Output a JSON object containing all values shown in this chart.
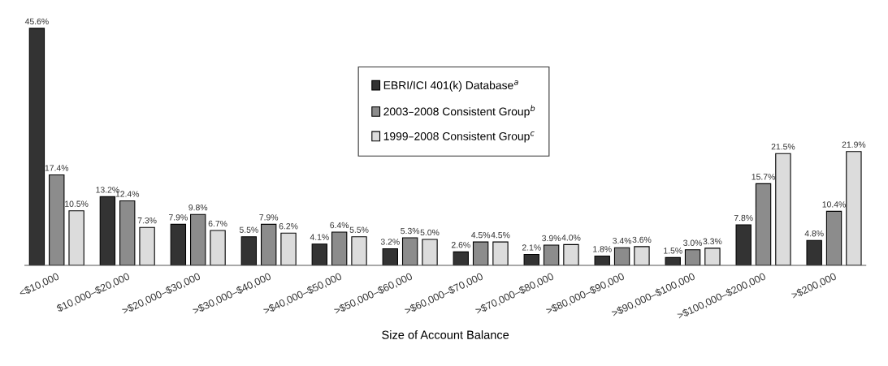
{
  "chart_data": {
    "type": "bar",
    "xlabel": "Size of Account Balance",
    "categories": [
      "<$10,000",
      "$10,000–$20,000",
      ">$20,000–$30,000",
      ">$30,000–$40,000",
      ">$40,000–$50,000",
      ">$50,000–$60,000",
      ">$60,000–$70,000",
      ">$70,000–$80,000",
      ">$80,000–$90,000",
      ">$90,000–$100,000",
      ">$100,000–$200,000",
      ">$200,000"
    ],
    "series": [
      {
        "name": "EBRI/ICI 401(k) Database$^{a}$",
        "color": "#333333",
        "values": [
          45.6,
          13.2,
          7.9,
          5.5,
          4.1,
          3.2,
          2.6,
          2.1,
          1.8,
          1.5,
          7.8,
          4.8
        ],
        "value_labels": [
          "45.6%",
          "13.2%",
          "7.9%",
          "5.5%",
          "4.1%",
          "3.2%",
          "2.6%",
          "2.1%",
          "1.8%",
          "1.5%",
          "7.8%",
          "4.8%"
        ]
      },
      {
        "name": "2003–2008 Consistent Group$^{b}$",
        "color": "#8c8c8c",
        "values": [
          17.4,
          12.4,
          9.8,
          7.9,
          6.4,
          5.3,
          4.5,
          3.9,
          3.4,
          3.0,
          15.7,
          10.4
        ],
        "value_labels": [
          "17.4%",
          "12.4%",
          "9.8%",
          "7.9%",
          "6.4%",
          "5.3%",
          "4.5%",
          "3.9%",
          "3.4%",
          "3.0%",
          "15.7%",
          "10.4%"
        ]
      },
      {
        "name": "1999–2008 Consistent Group$^{c}$",
        "color": "#dcdcdc",
        "values": [
          10.5,
          7.3,
          6.7,
          6.2,
          5.5,
          5.0,
          4.5,
          4.0,
          3.6,
          3.3,
          21.5,
          21.9
        ],
        "value_labels": [
          "10.5%",
          "7.3%",
          "6.7%",
          "6.2%",
          "5.5%",
          "5.0%",
          "4.5%",
          "4.0%",
          "3.6%",
          "3.3%",
          "21.5%",
          "21.9%"
        ]
      }
    ],
    "tick_labels": "x",
    "legend": "top",
    "grid": false
  }
}
